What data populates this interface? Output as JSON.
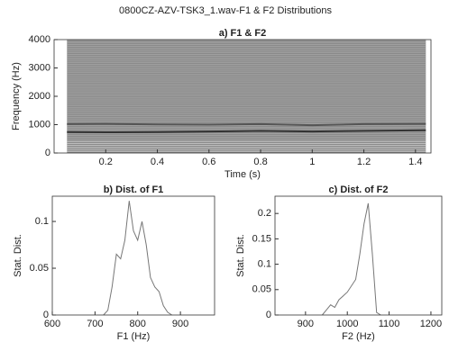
{
  "title": "0800CZ-AZV-TSK3_1.wav-F1 & F2 Distributions",
  "chart_data": [
    {
      "type": "spectrogram",
      "title": "a) F1 & F2",
      "x_label": "Time (s)",
      "y_label": "Frequency (Hz)",
      "x": [
        0.05,
        0.2,
        0.4,
        0.6,
        0.8,
        1.0,
        1.2,
        1.44
      ],
      "series": [
        {
          "color": "#333333",
          "values": [
            740,
            730,
            740,
            760,
            780,
            760,
            780,
            800
          ]
        },
        {
          "color": "#555555",
          "values": [
            1020,
            1030,
            1010,
            1000,
            1020,
            980,
            1020,
            1030
          ]
        }
      ],
      "xlim": [
        0,
        1.46
      ],
      "ylim": [
        0,
        4000
      ],
      "xticks": [
        0.2,
        0.4,
        0.6,
        0.8,
        1,
        1.2,
        1.4
      ],
      "yticks": [
        0,
        1000,
        2000,
        3000,
        4000
      ]
    },
    {
      "type": "line",
      "title": "b) Dist. of F1",
      "x_label": "F1 (Hz)",
      "y_label": "Stat. Dist.",
      "x": [
        720,
        730,
        740,
        750,
        760,
        770,
        780,
        790,
        800,
        810,
        820,
        830,
        840,
        850,
        860,
        870,
        880
      ],
      "series": [
        {
          "color": "#777777",
          "values": [
            0,
            0.005,
            0.03,
            0.065,
            0.06,
            0.08,
            0.122,
            0.09,
            0.08,
            0.1,
            0.075,
            0.04,
            0.03,
            0.025,
            0.01,
            0.003,
            0
          ]
        }
      ],
      "xlim": [
        600,
        980
      ],
      "ylim": [
        0,
        0.127
      ],
      "xticks": [
        600,
        700,
        800,
        900
      ],
      "yticks": [
        0,
        0.05,
        0.1
      ]
    },
    {
      "type": "line",
      "title": "c) Dist. of F2",
      "x_label": "F2 (Hz)",
      "y_label": "Stat. Dist.",
      "x": [
        940,
        950,
        960,
        970,
        980,
        1000,
        1020,
        1030,
        1040,
        1050,
        1060,
        1070,
        1080
      ],
      "series": [
        {
          "color": "#777777",
          "values": [
            0,
            0.01,
            0.02,
            0.015,
            0.03,
            0.045,
            0.07,
            0.12,
            0.18,
            0.22,
            0.12,
            0.005,
            0
          ]
        }
      ],
      "xlim": [
        827,
        1226
      ],
      "ylim": [
        0,
        0.234
      ],
      "xticks": [
        900,
        1000,
        1100,
        1200
      ],
      "yticks": [
        0,
        0.05,
        0.1,
        0.15,
        0.2
      ]
    }
  ]
}
